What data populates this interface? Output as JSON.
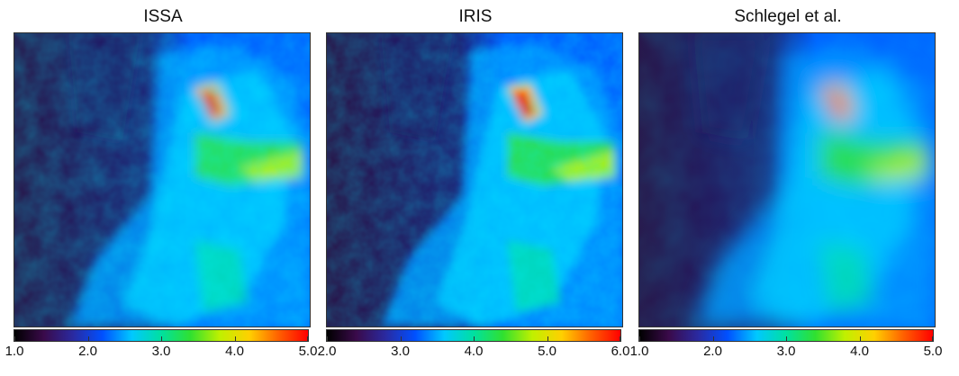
{
  "panels": [
    {
      "title": "ISSA",
      "colorbar": {
        "min": 1.0,
        "max": 5.0,
        "labels": [
          "1.0",
          "2.0",
          "3.0",
          "4.0",
          "5.0"
        ]
      }
    },
    {
      "title": "IRIS",
      "colorbar": {
        "min": 2.0,
        "max": 6.0,
        "labels": [
          "2.0",
          "3.0",
          "4.0",
          "5.0",
          "6.0"
        ]
      }
    },
    {
      "title": "Schlegel et al.",
      "colorbar": {
        "min": 1.0,
        "max": 5.0,
        "labels": [
          "1.0",
          "2.0",
          "3.0",
          "4.0",
          "5.0"
        ]
      }
    }
  ],
  "colormap": {
    "name": "rainbow",
    "stops": [
      "#000000",
      "#3a0a4a",
      "#2a2aa0",
      "#0050ff",
      "#00c8ff",
      "#00e0a0",
      "#30e030",
      "#c0f000",
      "#ffd000",
      "#ff6000",
      "#ff0000"
    ]
  }
}
